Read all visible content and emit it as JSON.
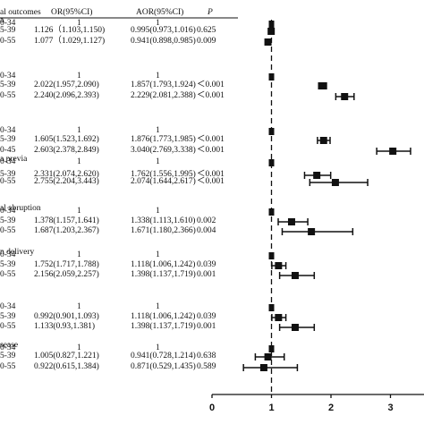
{
  "header": {
    "outcome": "al outcomes",
    "or": "OR(95%CI)",
    "aor": "AOR(95%CI)",
    "p": "P"
  },
  "chart_data": {
    "type": "forest",
    "xlabel": "",
    "xlim": [
      0,
      3.5
    ],
    "xticks": [
      0,
      1,
      2,
      3
    ],
    "reference_line": 1,
    "groups": [
      {
        "label": "a",
        "rows": [
          {
            "age": "0-34",
            "or": "1",
            "aor": "1",
            "p": "",
            "aor_value": 1.0,
            "lo": 1.0,
            "hi": 1.0,
            "ref": true
          },
          {
            "age": "5-39",
            "or": "1.126（1.103,1.150)",
            "aor": "0.995(0.973,1.016)",
            "p": "0.625",
            "aor_value": 0.995,
            "lo": 0.973,
            "hi": 1.016
          },
          {
            "age": "0-55",
            "or": "1.077（1.029,1.127)",
            "aor": "0.941(0.898,0.985)",
            "p": "0.009",
            "aor_value": 0.941,
            "lo": 0.898,
            "hi": 0.985
          }
        ]
      },
      {
        "label": "",
        "rows": [
          {
            "age": "0-34",
            "or": "1",
            "aor": "1",
            "p": "",
            "aor_value": 1.0,
            "lo": 1.0,
            "hi": 1.0,
            "ref": true
          },
          {
            "age": "5-39",
            "or": "2.022(1.957,2.090)",
            "aor": "1.857(1.793,1.924)",
            "p": "＜0.001",
            "aor_value": 1.857,
            "lo": 1.793,
            "hi": 1.924
          },
          {
            "age": "0-55",
            "or": "2.240(2.096,2.393)",
            "aor": "2.229(2.081,2.388)",
            "p": "＜0.001",
            "aor_value": 2.229,
            "lo": 2.081,
            "hi": 2.388
          }
        ]
      },
      {
        "label": "",
        "rows": [
          {
            "age": "0-34",
            "or": "1",
            "aor": "1",
            "p": "",
            "aor_value": 1.0,
            "lo": 1.0,
            "hi": 1.0,
            "ref": true
          },
          {
            "age": "5-39",
            "or": "1.605(1.523,1.692)",
            "aor": "1.876(1.773,1.985)",
            "p": "＜0.001",
            "aor_value": 1.876,
            "lo": 1.773,
            "hi": 1.985
          },
          {
            "age": "0-45",
            "or": "2.603(2.378,2.849)",
            "aor": "3.040(2.769,3.338)",
            "p": "＜0.001",
            "aor_value": 3.04,
            "lo": 2.769,
            "hi": 3.338
          }
        ]
      },
      {
        "label": "a previa",
        "rows": [
          {
            "age": "0-34",
            "or": "1",
            "aor": "1",
            "p": "",
            "aor_value": 1.0,
            "lo": 1.0,
            "hi": 1.0,
            "ref": true
          },
          {
            "age": "5-39",
            "or": "2.331(2.074,2.620)",
            "aor": "1.762(1.556,1.995)",
            "p": "＜0.001",
            "aor_value": 1.762,
            "lo": 1.556,
            "hi": 1.995
          },
          {
            "age": "0-55",
            "or": "2.755(2.204,3.443)",
            "aor": "2.074(1.644,2.617)",
            "p": "＜0.001",
            "aor_value": 2.074,
            "lo": 1.644,
            "hi": 2.617
          }
        ]
      },
      {
        "label": "al abruption",
        "rows": [
          {
            "age": "0-34",
            "or": "1",
            "aor": "1",
            "p": "",
            "aor_value": 1.0,
            "lo": 1.0,
            "hi": 1.0,
            "ref": true
          },
          {
            "age": "5-39",
            "or": "1.378(1.157,1.641)",
            "aor": "1.338(1.113,1.610)",
            "p": "0.002",
            "aor_value": 1.338,
            "lo": 1.113,
            "hi": 1.61
          },
          {
            "age": "0-55",
            "or": "1.687(1.203,2.367)",
            "aor": "1.671(1.180,2.366)",
            "p": "0.004",
            "aor_value": 1.671,
            "lo": 1.18,
            "hi": 2.366
          }
        ]
      },
      {
        "label": "n delivery",
        "rows": [
          {
            "age": "0-34",
            "or": "1",
            "aor": "1",
            "p": "",
            "aor_value": 1.0,
            "lo": 1.0,
            "hi": 1.0,
            "ref": true
          },
          {
            "age": "5-39",
            "or": "1.752(1.717,1.788)",
            "aor": "1.118(1.006,1.242)",
            "p": "0.039",
            "aor_value": 1.118,
            "lo": 1.006,
            "hi": 1.242
          },
          {
            "age": "0-55",
            "or": "2.156(2.059,2.257)",
            "aor": "1.398(1.137,1.719)",
            "p": "0.001",
            "aor_value": 1.398,
            "lo": 1.137,
            "hi": 1.719
          }
        ]
      },
      {
        "label": "",
        "rows": [
          {
            "age": "0-34",
            "or": "1",
            "aor": "1",
            "p": "",
            "aor_value": 1.0,
            "lo": 1.0,
            "hi": 1.0,
            "ref": true
          },
          {
            "age": "5-39",
            "or": "0.992(0.901,1.093)",
            "aor": "1.118(1.006,1.242)",
            "p": "0.039",
            "aor_value": 1.118,
            "lo": 1.006,
            "hi": 1.242
          },
          {
            "age": "0-55",
            "or": "1.133(0.93,1.381)",
            "aor": "1.398(1.137,1.719)",
            "p": "0.001",
            "aor_value": 1.398,
            "lo": 1.137,
            "hi": 1.719
          }
        ]
      },
      {
        "label": "sease",
        "rows": [
          {
            "age": "0-34",
            "or": "1",
            "aor": "1",
            "p": "",
            "aor_value": 1.0,
            "lo": 1.0,
            "hi": 1.0,
            "ref": true
          },
          {
            "age": "5-39",
            "or": "1.005(0.827,1.221)",
            "aor": "0.941(0.728,1.214)",
            "p": "0.638",
            "aor_value": 0.941,
            "lo": 0.728,
            "hi": 1.214
          },
          {
            "age": "0-55",
            "or": "0.922(0.615,1.384)",
            "aor": "0.871(0.529,1.435)",
            "p": "0.589",
            "aor_value": 0.871,
            "lo": 0.529,
            "hi": 1.435
          }
        ]
      }
    ]
  }
}
